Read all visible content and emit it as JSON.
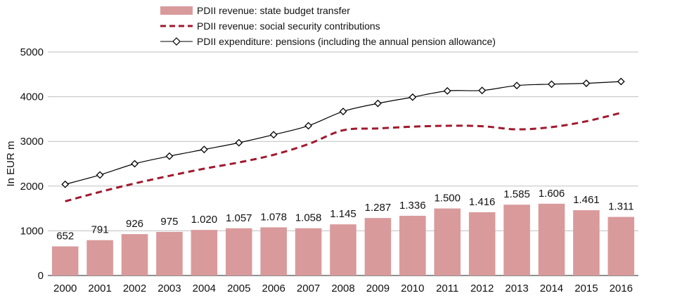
{
  "chart_data": {
    "type": "bar",
    "title": "",
    "xlabel": "",
    "ylabel": "In EUR m",
    "ylim": [
      0,
      5000
    ],
    "yticks": [
      0,
      1000,
      2000,
      3000,
      4000,
      5000
    ],
    "grid": true,
    "legend_position": "top",
    "categories": [
      "2000",
      "2001",
      "2002",
      "2003",
      "2004",
      "2005",
      "2006",
      "2007",
      "2008",
      "2009",
      "2010",
      "2011",
      "2012",
      "2013",
      "2014",
      "2015",
      "2016"
    ],
    "series": [
      {
        "name": "PDII revenue: state budget transfer",
        "kind": "bar",
        "color": "#d99a9c",
        "values": [
          652,
          791,
          926,
          975,
          1020,
          1057,
          1078,
          1058,
          1145,
          1287,
          1336,
          1500,
          1416,
          1585,
          1606,
          1461,
          1311
        ],
        "labels": [
          "652",
          "791",
          "926",
          "975",
          "1.020",
          "1.057",
          "1.078",
          "1.058",
          "1.145",
          "1.287",
          "1.336",
          "1.500",
          "1.416",
          "1.585",
          "1.606",
          "1.461",
          "1.311"
        ]
      },
      {
        "name": "PDII revenue: social security contributions",
        "kind": "dashed-line",
        "color": "#a0192e",
        "values": [
          1660,
          1870,
          2060,
          2230,
          2390,
          2530,
          2700,
          2940,
          3250,
          3290,
          3330,
          3350,
          3340,
          3270,
          3320,
          3450,
          3640
        ]
      },
      {
        "name": "PDII expenditure: pensions (including the annual pension allowance)",
        "kind": "line-diamond",
        "color": "#000000",
        "values": [
          2040,
          2250,
          2500,
          2670,
          2820,
          2970,
          3150,
          3350,
          3670,
          3850,
          3990,
          4130,
          4140,
          4250,
          4280,
          4300,
          4340
        ]
      }
    ]
  }
}
